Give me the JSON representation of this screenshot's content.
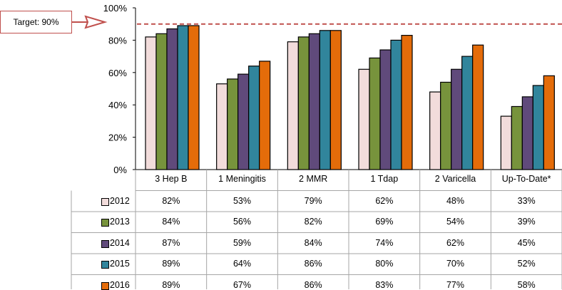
{
  "chart_data": {
    "type": "bar",
    "categories": [
      "3 Hep B",
      "1 Meningitis",
      "2 MMR",
      "1 Tdap",
      "2 Varicella",
      "Up-To-Date*"
    ],
    "series": [
      {
        "name": "2012",
        "values": [
          82,
          53,
          79,
          62,
          48,
          33
        ],
        "labels": [
          "82%",
          "53%",
          "79%",
          "62%",
          "48%",
          "33%"
        ],
        "color": "#f2dcdb"
      },
      {
        "name": "2013",
        "values": [
          84,
          56,
          82,
          69,
          54,
          39
        ],
        "labels": [
          "84%",
          "56%",
          "82%",
          "69%",
          "54%",
          "39%"
        ],
        "color": "#77933c"
      },
      {
        "name": "2014",
        "values": [
          87,
          59,
          84,
          74,
          62,
          45
        ],
        "labels": [
          "87%",
          "59%",
          "84%",
          "74%",
          "62%",
          "45%"
        ],
        "color": "#604a7b"
      },
      {
        "name": "2015",
        "values": [
          89,
          64,
          86,
          80,
          70,
          52
        ],
        "labels": [
          "89%",
          "64%",
          "86%",
          "80%",
          "70%",
          "52%"
        ],
        "color": "#31859c"
      },
      {
        "name": "2016",
        "values": [
          89,
          67,
          86,
          83,
          77,
          58
        ],
        "labels": [
          "89%",
          "67%",
          "86%",
          "83%",
          "77%",
          "58%"
        ],
        "color": "#e46c0a"
      }
    ],
    "ylim": [
      0,
      100
    ],
    "yticks": [
      0,
      20,
      40,
      60,
      80,
      100
    ],
    "ytick_labels": [
      "0%",
      "20%",
      "40%",
      "60%",
      "80%",
      "100%"
    ],
    "target": {
      "value": 90,
      "label": "Target: 90%",
      "color": "#c0504d"
    },
    "data_table": true,
    "grid": false
  }
}
